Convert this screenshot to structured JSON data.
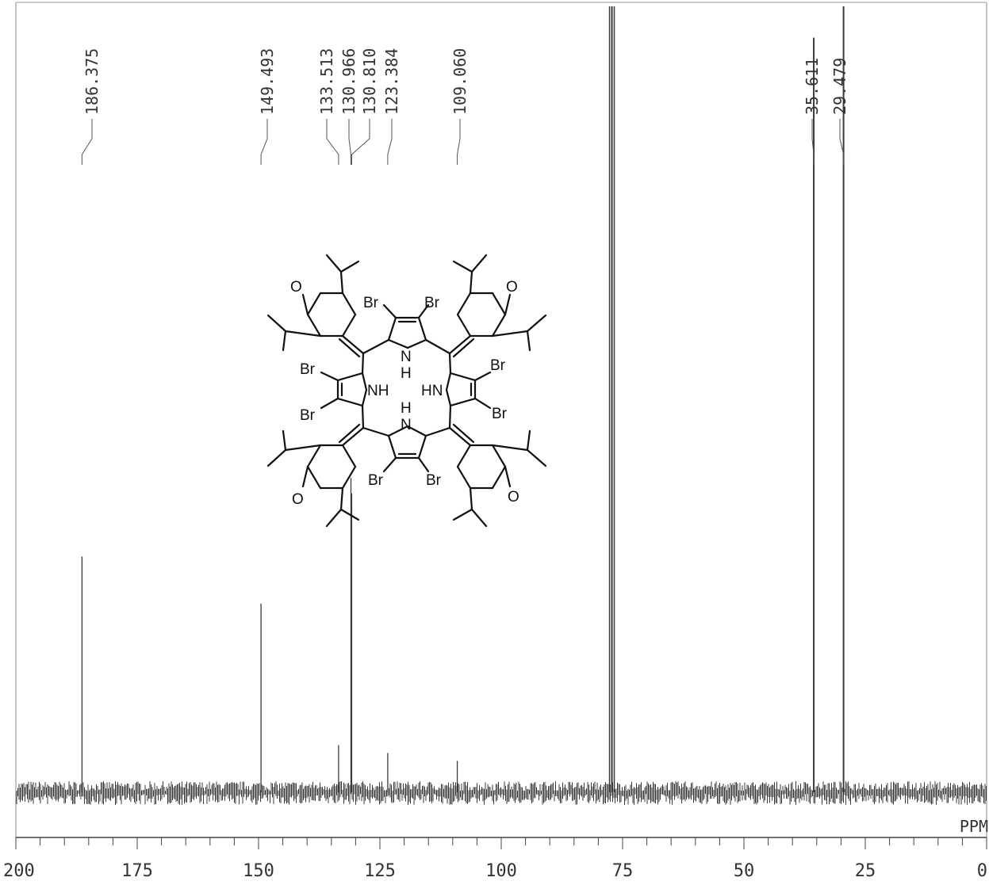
{
  "chart_data": {
    "type": "line",
    "title": "",
    "xlabel": "PPM",
    "ylabel": "",
    "xlim": [
      200,
      0
    ],
    "x_reversed": true,
    "grid": false,
    "x_ticks": [
      200,
      175,
      150,
      125,
      100,
      75,
      50,
      25,
      0
    ],
    "x_tick_labels": [
      "200",
      "175",
      "150",
      "125",
      "100",
      "75",
      "50",
      "25",
      "0"
    ],
    "peaks": [
      {
        "ppm": 186.375,
        "label": "186.375",
        "intensity": 0.3
      },
      {
        "ppm": 149.493,
        "label": "149.493",
        "intensity": 0.24
      },
      {
        "ppm": 133.513,
        "label": "133.513",
        "intensity": 0.06
      },
      {
        "ppm": 130.966,
        "label": "130.966",
        "intensity": 0.4
      },
      {
        "ppm": 130.81,
        "label": "130.810",
        "intensity": 0.38
      },
      {
        "ppm": 123.384,
        "label": "123.384",
        "intensity": 0.05
      },
      {
        "ppm": 109.06,
        "label": "109.060",
        "intensity": 0.04
      },
      {
        "ppm": 77.2,
        "label": "",
        "intensity": 1.0
      },
      {
        "ppm": 35.611,
        "label": "35.611",
        "intensity": 0.96
      },
      {
        "ppm": 29.479,
        "label": "29.479",
        "intensity": 1.0
      }
    ]
  },
  "structure": {
    "labels": [
      "O",
      "O",
      "O",
      "O",
      "Br",
      "Br",
      "Br",
      "Br",
      "Br",
      "Br",
      "Br",
      "Br",
      "NH",
      "HN",
      "N",
      "H",
      "N",
      "H"
    ]
  },
  "colors": {
    "line": "#3a3a3a",
    "frame": "#444444",
    "text": "#333333"
  }
}
